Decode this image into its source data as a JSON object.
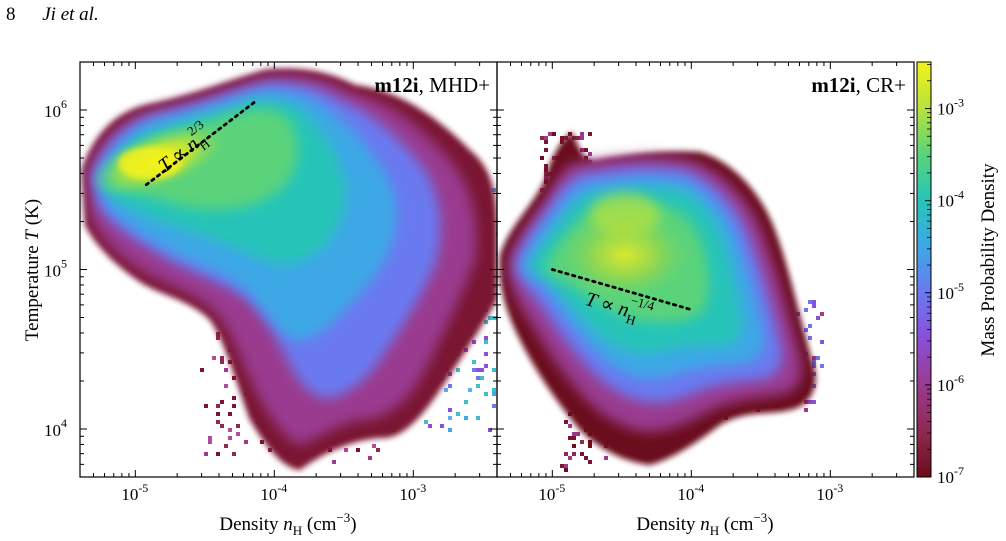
{
  "page": {
    "page_number": "8",
    "running_head": "Ji et al."
  },
  "figure": {
    "colorbar": {
      "label": "Mass Probability Density",
      "ticks": [
        {
          "base": "10",
          "exp": "-3"
        },
        {
          "base": "10",
          "exp": "-4"
        },
        {
          "base": "10",
          "exp": "-5"
        },
        {
          "base": "10",
          "exp": "-6"
        },
        {
          "base": "10",
          "exp": "-7"
        }
      ],
      "colors": [
        "#6b0d1a",
        "#8e2a52",
        "#9a3b8f",
        "#8a4fd8",
        "#6a79f0",
        "#3ea8e6",
        "#26c4b8",
        "#5ad37a",
        "#b9e23c",
        "#f3f21a"
      ]
    }
  },
  "chart_data": [
    {
      "type": "heatmap",
      "title": "m12i, MHD+",
      "title_bold": "m12i",
      "title_rest": ", MHD+",
      "xlabel": "Density n_H (cm^-3)",
      "xlabel_parts": {
        "main": "Density ",
        "var": "n",
        "sub": "H",
        "unit_open": " (cm",
        "exp": "−3",
        "unit_close": ")"
      },
      "ylabel": "Temperature T (K)",
      "ylabel_parts": {
        "main": "Temperature ",
        "var": "T",
        "unit": " (K)"
      },
      "x_scale": "log",
      "y_scale": "log",
      "xlim": [
        4e-06,
        0.004
      ],
      "ylim": [
        5000.0,
        2000000.0
      ],
      "x_ticks": [
        {
          "base": "10",
          "exp": "-5",
          "value": 1e-05
        },
        {
          "base": "10",
          "exp": "-4",
          "value": 0.0001
        },
        {
          "base": "10",
          "exp": "-3",
          "value": 0.001
        }
      ],
      "y_ticks": [
        {
          "base": "10",
          "exp": "4",
          "value": 10000.0
        },
        {
          "base": "10",
          "exp": "5",
          "value": 100000.0
        },
        {
          "base": "10",
          "exp": "6",
          "value": 1000000.0
        }
      ],
      "fit_line": {
        "x": [
          1.2e-05,
          7.5e-05
        ],
        "y": [
          340000.0,
          1150000.0
        ],
        "label": "T ∝ n_H^2/3",
        "label_parts": {
          "lhs": "T ∝ n",
          "sub": "H",
          "exp": "2/3"
        }
      },
      "density_peak": {
        "x": 2.2e-05,
        "y": 460000.0
      }
    },
    {
      "type": "heatmap",
      "title": "m12i, CR+",
      "title_bold": "m12i",
      "title_rest": ", CR+",
      "xlabel": "Density n_H (cm^-3)",
      "xlabel_parts": {
        "main": "Density ",
        "var": "n",
        "sub": "H",
        "unit_open": " (cm",
        "exp": "−3",
        "unit_close": ")"
      },
      "x_scale": "log",
      "y_scale": "log",
      "xlim": [
        4e-06,
        0.004
      ],
      "ylim": [
        5000.0,
        2000000.0
      ],
      "x_ticks": [
        {
          "base": "10",
          "exp": "-5",
          "value": 1e-05
        },
        {
          "base": "10",
          "exp": "-4",
          "value": 0.0001
        },
        {
          "base": "10",
          "exp": "-3",
          "value": 0.001
        }
      ],
      "fit_line": {
        "x": [
          1e-05,
          0.0001
        ],
        "y": [
          100000.0,
          56000.0
        ],
        "label": "T ∝ n_H^-1/4",
        "label_parts": {
          "lhs": "T ∝ n",
          "sub": "H",
          "exp": "−1/4"
        }
      },
      "density_peak": {
        "x": 3.5e-05,
        "y": 120000.0
      }
    }
  ]
}
